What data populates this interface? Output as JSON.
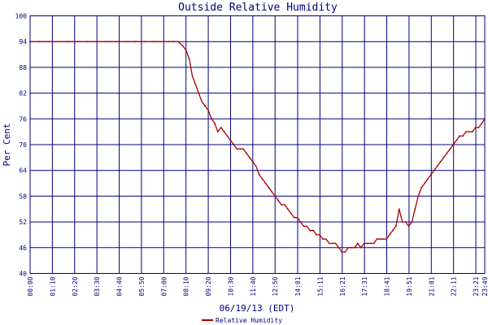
{
  "chart_data": {
    "type": "line",
    "title": "Outside Relative Humidity",
    "ylabel": "Per Cent",
    "xlabel": "06/19/13 (EDT)",
    "ylim": [
      40,
      100
    ],
    "yticks": [
      "100",
      "94",
      "88",
      "82",
      "76",
      "70",
      "64",
      "58",
      "52",
      "46",
      "40"
    ],
    "xticks": [
      "00:00",
      "01:10",
      "02:20",
      "03:30",
      "04:40",
      "05:50",
      "07:00",
      "08:10",
      "09:20",
      "10:30",
      "11:40",
      "12:50",
      "14:01",
      "15:11",
      "16:21",
      "17:31",
      "18:41",
      "19:51",
      "21:01",
      "22:11",
      "23:21",
      "23:49"
    ],
    "grid": true,
    "legend_position": "bottom",
    "colors": {
      "series": "#aa0000",
      "grid": "#000080",
      "text": "#000080",
      "background": "#ffffff"
    },
    "series": [
      {
        "name": "Relative Humidity",
        "x": [
          "00:00",
          "00:30",
          "01:00",
          "01:30",
          "02:00",
          "02:30",
          "03:00",
          "03:30",
          "04:00",
          "04:30",
          "05:00",
          "05:30",
          "06:00",
          "06:30",
          "07:00",
          "07:15",
          "07:30",
          "07:45",
          "08:00",
          "08:10",
          "08:20",
          "08:30",
          "08:40",
          "08:50",
          "09:00",
          "09:10",
          "09:20",
          "09:30",
          "09:40",
          "09:50",
          "10:00",
          "10:10",
          "10:20",
          "10:30",
          "10:40",
          "10:50",
          "11:00",
          "11:10",
          "11:20",
          "11:30",
          "11:40",
          "11:50",
          "12:00",
          "12:10",
          "12:20",
          "12:30",
          "12:40",
          "12:50",
          "13:00",
          "13:10",
          "13:20",
          "13:30",
          "13:40",
          "13:50",
          "14:00",
          "14:10",
          "14:20",
          "14:30",
          "14:40",
          "14:50",
          "15:00",
          "15:10",
          "15:20",
          "15:30",
          "15:40",
          "15:50",
          "16:00",
          "16:10",
          "16:20",
          "16:30",
          "16:40",
          "16:50",
          "17:00",
          "17:10",
          "17:20",
          "17:30",
          "17:40",
          "17:50",
          "18:00",
          "18:10",
          "18:20",
          "18:30",
          "18:40",
          "18:50",
          "19:00",
          "19:10",
          "19:20",
          "19:30",
          "19:40",
          "19:50",
          "20:00",
          "20:10",
          "20:20",
          "20:30",
          "20:40",
          "20:50",
          "21:00",
          "21:10",
          "21:20",
          "21:30",
          "21:40",
          "21:50",
          "22:00",
          "22:10",
          "22:20",
          "22:30",
          "22:40",
          "22:50",
          "23:00",
          "23:10",
          "23:20",
          "23:30",
          "23:40",
          "23:49"
        ],
        "values": [
          94,
          94,
          94,
          94,
          94,
          94,
          94,
          94,
          94,
          94,
          94,
          94,
          94,
          94,
          94,
          94,
          94,
          94,
          93,
          92,
          90,
          86,
          84,
          82,
          80,
          79,
          78,
          76,
          75,
          73,
          74,
          73,
          72,
          71,
          70,
          69,
          69,
          69,
          68,
          67,
          66,
          65,
          63,
          62,
          61,
          60,
          59,
          58,
          57,
          56,
          56,
          55,
          54,
          53,
          53,
          52,
          51,
          51,
          50,
          50,
          49,
          49,
          48,
          48,
          47,
          47,
          47,
          46,
          45,
          45,
          46,
          46,
          46,
          47,
          46,
          47,
          47,
          47,
          47,
          48,
          48,
          48,
          48,
          49,
          50,
          51,
          55,
          52,
          52,
          51,
          52,
          55,
          58,
          60,
          61,
          62,
          63,
          64,
          65,
          66,
          67,
          68,
          69,
          70,
          71,
          72,
          72,
          73,
          73,
          73,
          74,
          74,
          75,
          76
        ]
      }
    ]
  }
}
